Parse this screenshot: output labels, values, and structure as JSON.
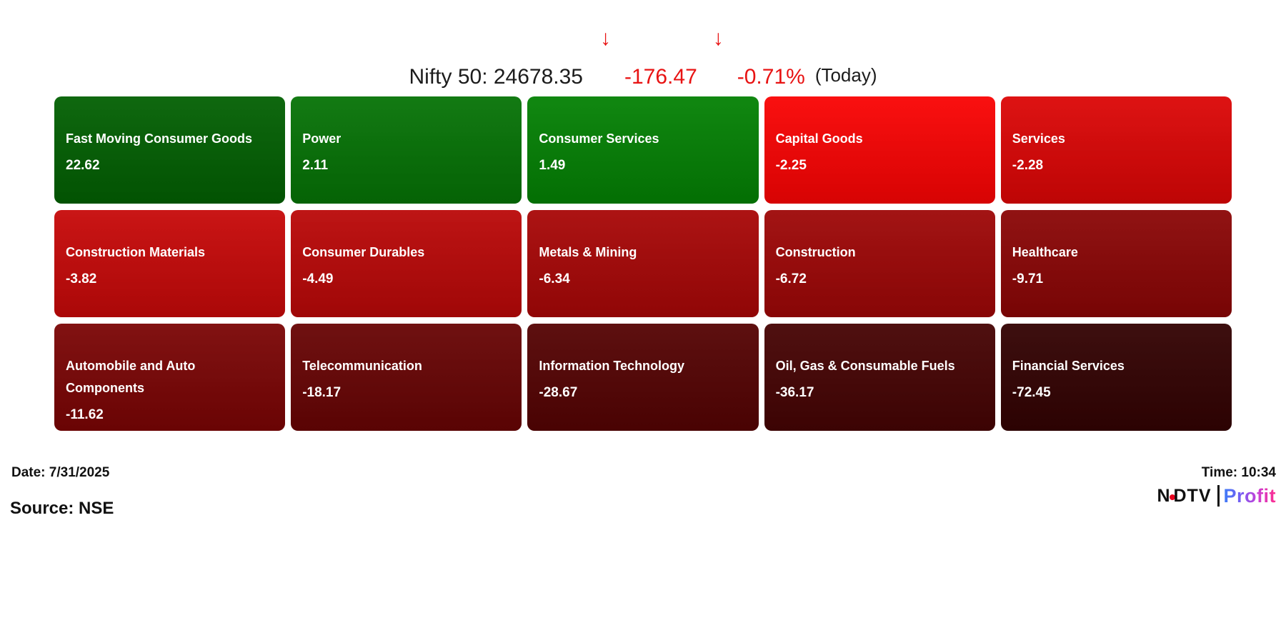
{
  "chart_data": {
    "type": "heatmap",
    "title": "Nifty 50 sector performance heatmap",
    "index_label": "Nifty 50: 24678.35",
    "index_value": 24678.35,
    "change": -176.47,
    "change_pct": -0.71,
    "change_label": "-176.47",
    "change_pct_label": "-0.71%",
    "period_label": "(Today)",
    "legend_position": "none",
    "grid": "off",
    "categories": [
      "Fast Moving Consumer Goods",
      "Power",
      "Consumer Services",
      "Capital Goods",
      "Services",
      "Construction Materials",
      "Consumer Durables",
      "Metals & Mining",
      "Construction",
      "Healthcare",
      "Automobile and Auto Components",
      "Telecommunication",
      "Information Technology",
      "Oil, Gas & Consumable Fuels",
      "Financial Services"
    ],
    "values": [
      22.62,
      2.11,
      1.49,
      -2.25,
      -2.28,
      -3.82,
      -4.49,
      -6.34,
      -6.72,
      -9.71,
      -11.62,
      -18.17,
      -28.67,
      -36.17,
      -72.45
    ],
    "colors": [
      "#026002",
      "#067306",
      "#048104",
      "#fa0303",
      "#dc0606",
      "#c70909",
      "#ba0808",
      "#a80707",
      "#9e0707",
      "#8b0606",
      "#7b0505",
      "#680404",
      "#550303",
      "#460303",
      "#330202"
    ],
    "color_scale_note": "green = positive change, red = negative change, darker shade = larger magnitude"
  },
  "icons": {
    "down_arrow": "↓"
  },
  "colors": {
    "negative_text": "#e81313",
    "title_text": "#1c1c1c",
    "tile_text": "#ffffff",
    "logo_dot": "#e8001e"
  },
  "footer": {
    "date_label": "Date: 7/31/2025",
    "source_label": "Source: NSE",
    "time_label": "Time: 10:34",
    "logo": {
      "brand_left": "N",
      "brand_right": "DTV",
      "separator": "|",
      "brand_profit": "Profit"
    }
  }
}
